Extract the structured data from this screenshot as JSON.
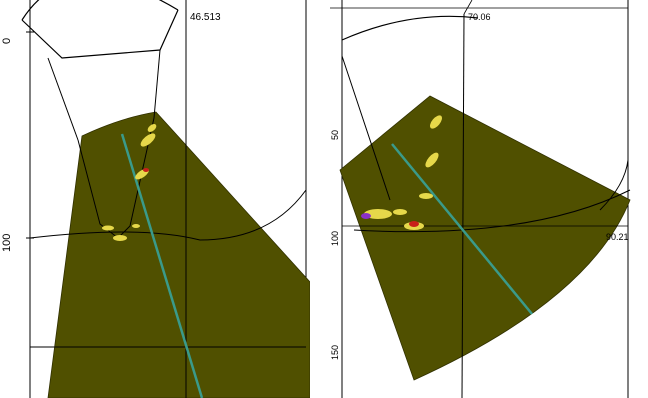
{
  "left_panel": {
    "readout": "46.513",
    "axis_labels": [
      "0",
      "100"
    ]
  },
  "right_panel": {
    "readout_top": "70.06",
    "readout_right": "90.21",
    "axis_labels": [
      "50",
      "100",
      "150"
    ]
  },
  "colors": {
    "sector_fill": "#505000",
    "beam_line": "#3a9a8a",
    "echo_yellow": "#e6d84a",
    "echo_red": "#c8201a",
    "echo_purple": "#8a30c8",
    "lines": "#000000"
  }
}
